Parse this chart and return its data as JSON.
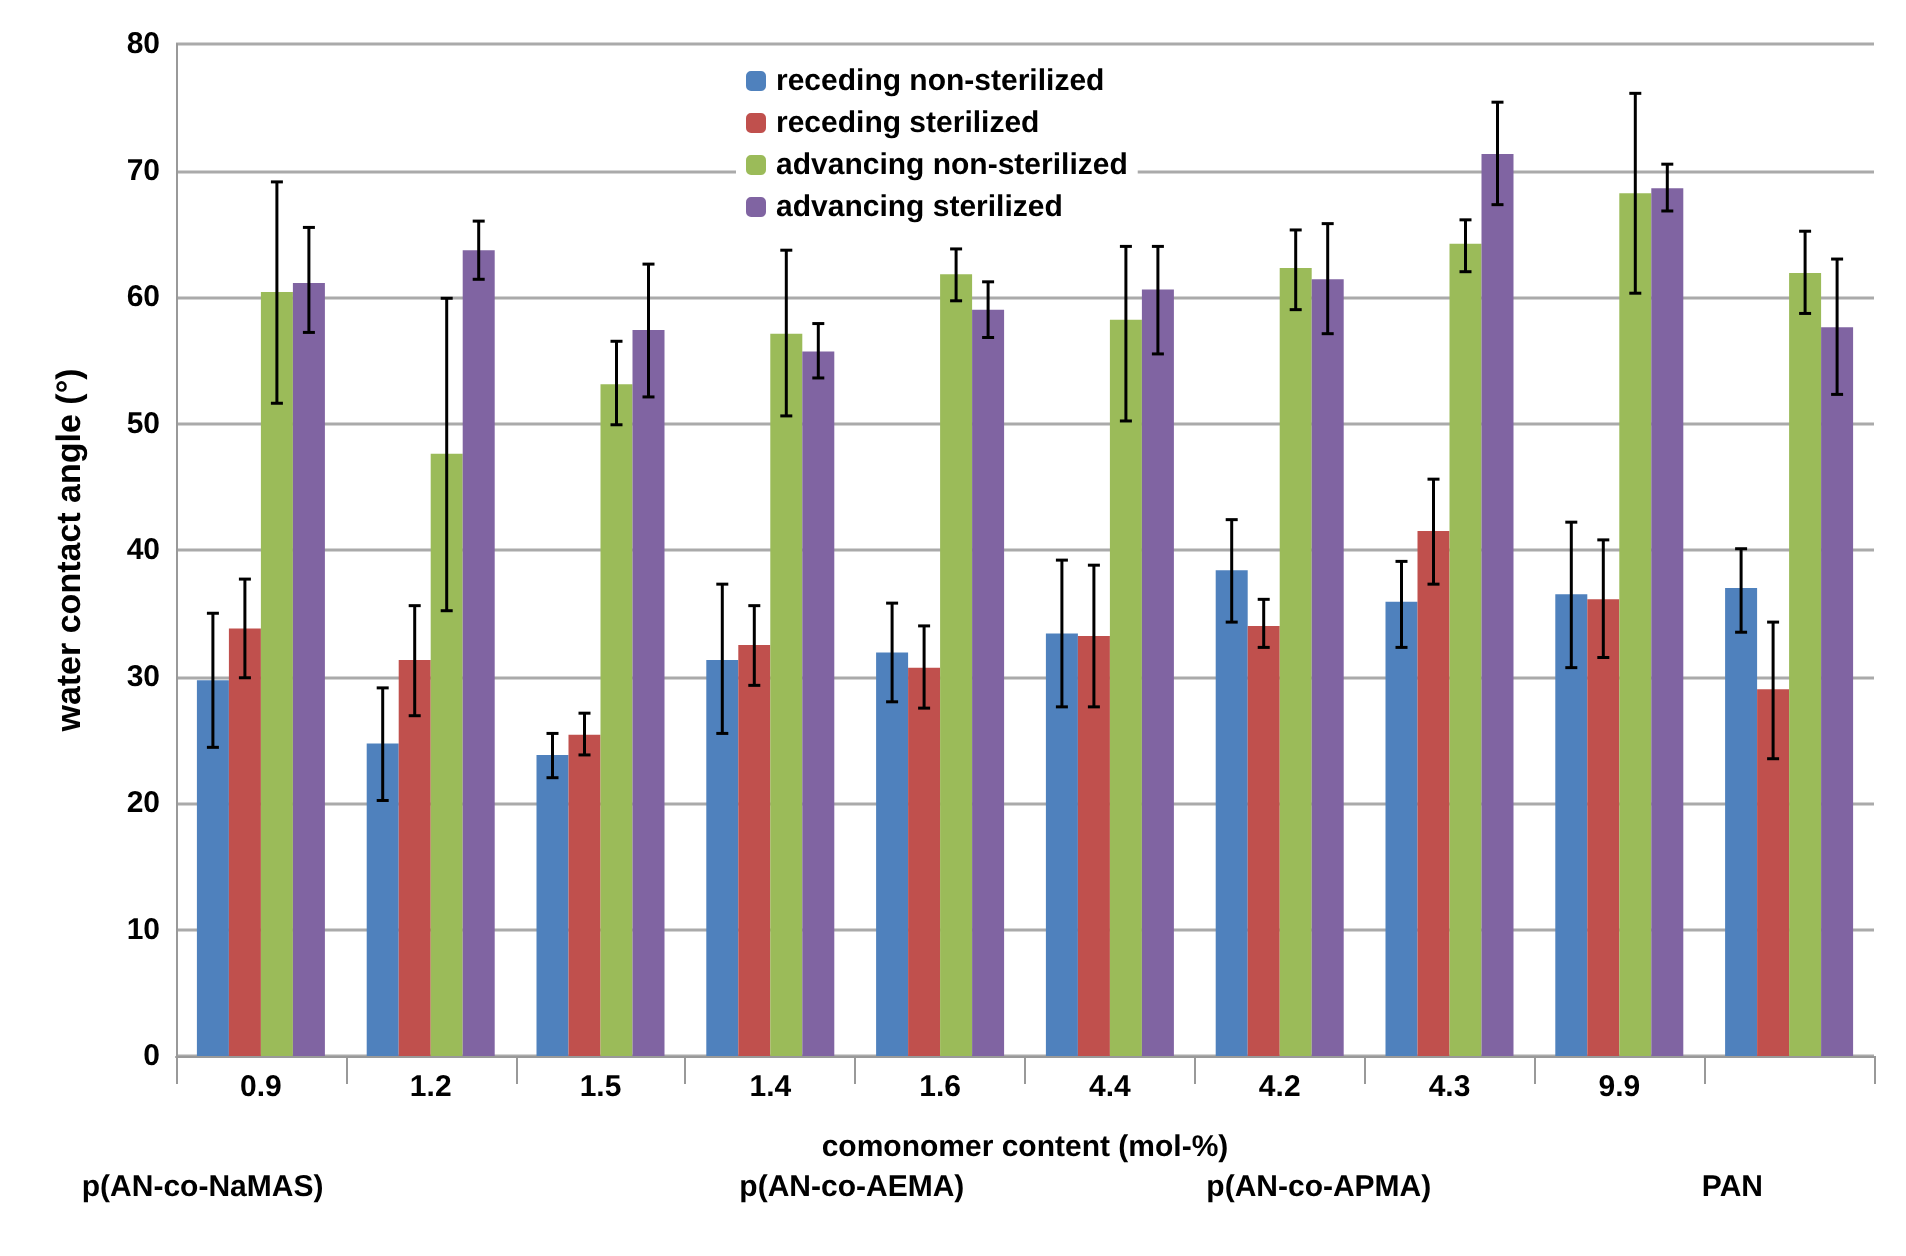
{
  "chart_data": {
    "type": "bar",
    "xlabel": "comonomer content (mol-%)",
    "ylabel": "water contact angle (°)",
    "categories": [
      "0.9",
      "1.2",
      "1.5",
      "1.4",
      "1.6",
      "4.4",
      "4.2",
      "4.3",
      "9.9",
      null
    ],
    "series": [
      {
        "name": "receding non-sterilized",
        "color": "#4f81bd",
        "values": [
          29.7,
          24.7,
          23.8,
          31.3,
          31.9,
          33.4,
          38.4,
          35.9,
          36.5,
          37.0
        ],
        "errors": [
          [
            24.4,
            35.0
          ],
          [
            20.2,
            29.1
          ],
          [
            22.0,
            25.5
          ],
          [
            25.5,
            37.3
          ],
          [
            28.0,
            35.8
          ],
          [
            27.6,
            39.2
          ],
          [
            34.3,
            42.4
          ],
          [
            32.3,
            39.1
          ],
          [
            30.7,
            42.2
          ],
          [
            33.5,
            40.1
          ]
        ]
      },
      {
        "name": "receding sterilized",
        "color": "#c0504d",
        "values": [
          33.8,
          31.3,
          25.4,
          32.5,
          30.7,
          33.2,
          34.0,
          41.5,
          36.1,
          29.0
        ],
        "errors": [
          [
            29.9,
            37.7
          ],
          [
            26.9,
            35.6
          ],
          [
            23.8,
            27.1
          ],
          [
            29.3,
            35.6
          ],
          [
            27.5,
            34.0
          ],
          [
            27.6,
            38.8
          ],
          [
            32.3,
            36.1
          ],
          [
            37.3,
            45.6
          ],
          [
            31.5,
            40.8
          ],
          [
            23.5,
            34.3
          ]
        ]
      },
      {
        "name": "advancing non-sterilized",
        "color": "#9bbb59",
        "values": [
          60.4,
          47.6,
          53.1,
          57.1,
          61.8,
          58.2,
          62.3,
          64.2,
          68.2,
          61.9
        ],
        "errors": [
          [
            51.6,
            69.1
          ],
          [
            35.2,
            59.9
          ],
          [
            49.9,
            56.5
          ],
          [
            50.6,
            63.7
          ],
          [
            59.7,
            63.8
          ],
          [
            50.2,
            64.0
          ],
          [
            59.0,
            65.3
          ],
          [
            62.0,
            66.1
          ],
          [
            60.3,
            76.1
          ],
          [
            58.7,
            65.2
          ]
        ]
      },
      {
        "name": "advancing sterilized",
        "color": "#8064a2",
        "values": [
          61.1,
          63.7,
          57.4,
          55.7,
          59.0,
          60.6,
          61.4,
          71.3,
          68.6,
          57.6
        ],
        "errors": [
          [
            57.2,
            65.5
          ],
          [
            61.4,
            66.0
          ],
          [
            52.1,
            62.6
          ],
          [
            53.6,
            57.9
          ],
          [
            56.8,
            61.2
          ],
          [
            55.5,
            64.0
          ],
          [
            57.1,
            65.8
          ],
          [
            67.3,
            75.4
          ],
          [
            66.8,
            70.5
          ],
          [
            52.3,
            63.0
          ]
        ]
      }
    ],
    "ylim": [
      0,
      80
    ],
    "yticks": [
      0,
      10,
      20,
      30,
      40,
      50,
      60,
      70,
      80
    ],
    "grid": "y",
    "legend": "top",
    "annotations": [
      "p(AN-co-NaMAS)",
      "p(AN-co-AEMA)",
      "p(AN-co-APMA)",
      "PAN"
    ]
  }
}
